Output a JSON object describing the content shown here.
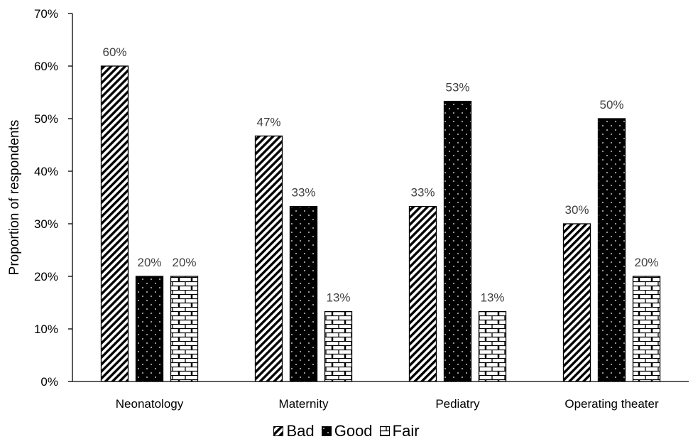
{
  "chart_data": {
    "type": "bar",
    "title": "",
    "xlabel": "",
    "ylabel": "Proportion of respondents",
    "ylim": [
      0,
      70
    ],
    "yticks": [
      "0%",
      "10%",
      "20%",
      "30%",
      "40%",
      "50%",
      "60%",
      "70%"
    ],
    "categories": [
      "Neonatology",
      "Maternity",
      "Pediatry",
      "Operating theater"
    ],
    "series": [
      {
        "name": "Bad",
        "values": [
          60,
          46.7,
          33.3,
          30
        ],
        "labels": [
          "60%",
          "47%",
          "33%",
          "30%"
        ],
        "pattern": "diagonal-stripes"
      },
      {
        "name": "Good",
        "values": [
          20,
          33.3,
          53.3,
          50
        ],
        "labels": [
          "20%",
          "33%",
          "53%",
          "50%"
        ],
        "pattern": "black-dots"
      },
      {
        "name": "Fair",
        "values": [
          20,
          13.3,
          13.3,
          20
        ],
        "labels": [
          "20%",
          "13%",
          "13%",
          "20%"
        ],
        "pattern": "brick"
      }
    ],
    "grid": false,
    "legend_position": "bottom",
    "colors": {
      "axis": "#000000",
      "bar_fill": "#000000",
      "label": "#404040"
    }
  }
}
